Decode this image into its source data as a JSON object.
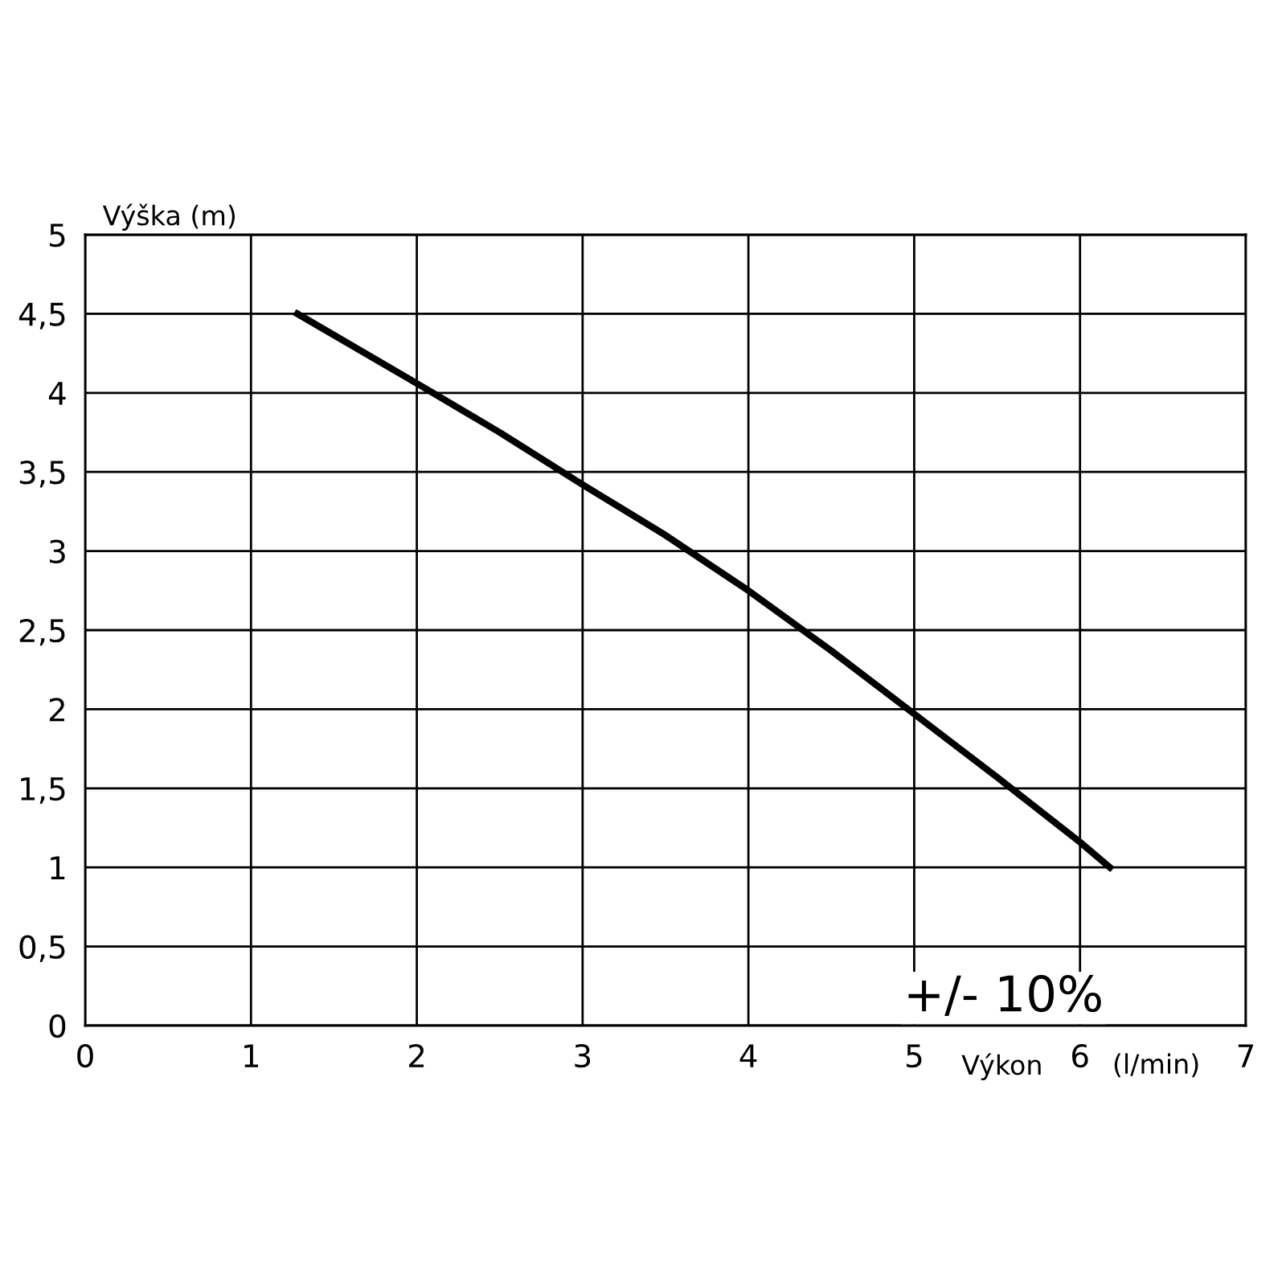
{
  "chart_data": {
    "type": "line",
    "ylabel": "Výška (m)",
    "xlabel": "Výkon",
    "annotations": [
      "(l/min)",
      "+/- 10%"
    ],
    "series": [
      {
        "color": "#000000",
        "x": [
          1.28,
          2,
          2.5,
          3,
          3.5,
          4,
          4.5,
          5,
          5.5,
          6,
          6.18
        ],
        "values": [
          4.5,
          4.06,
          3.75,
          3.42,
          3.1,
          2.75,
          2.37,
          1.97,
          1.57,
          1.16,
          1.0
        ]
      }
    ],
    "xlim": [
      0,
      7
    ],
    "xticks": [
      0,
      1,
      2,
      3,
      4,
      5,
      6,
      7
    ],
    "ylim": [
      0,
      5
    ],
    "yticks": [
      0,
      {
        "value": 0.5,
        "label": "0,5"
      },
      1,
      {
        "value": 1.5,
        "label": "1,5"
      },
      2,
      {
        "value": 2.5,
        "label": "2,5"
      },
      3,
      {
        "value": 3.5,
        "label": "3,5"
      },
      4,
      {
        "value": 4.5,
        "label": "4,5"
      },
      5
    ],
    "grid": true,
    "marker": "none",
    "line_style": "solid"
  }
}
